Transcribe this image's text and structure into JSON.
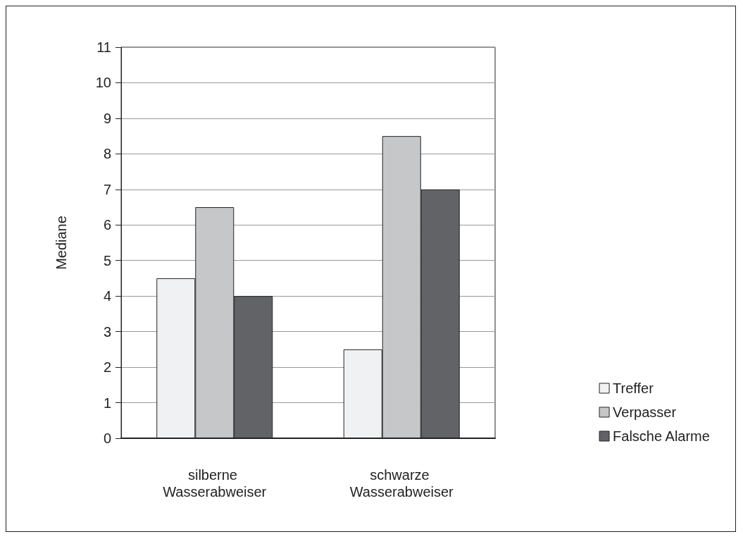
{
  "chart_data": {
    "type": "bar",
    "ylabel": "Mediane",
    "categories": [
      "silberne Wasserabweiser",
      "schwarze Wasserabweiser"
    ],
    "series": [
      {
        "name": "Treffer",
        "color": "#f0f1f2",
        "values": [
          4.5,
          2.5
        ]
      },
      {
        "name": "Verpasser",
        "color": "#c6c7c9",
        "values": [
          6.5,
          8.5
        ]
      },
      {
        "name": "Falsche Alarme",
        "color": "#626366",
        "values": [
          4,
          7
        ]
      }
    ],
    "ylim": [
      0,
      11
    ],
    "yticks": [
      0,
      1,
      2,
      3,
      4,
      5,
      6,
      7,
      8,
      9,
      10,
      11
    ],
    "grid": "y",
    "legend": "right"
  }
}
